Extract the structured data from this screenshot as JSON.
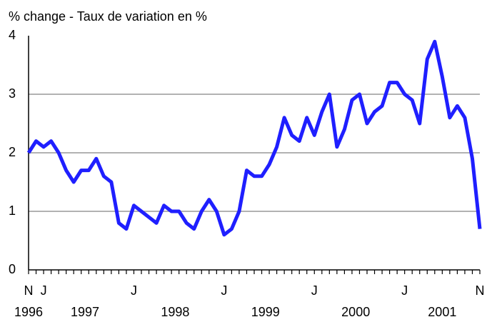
{
  "chart_data": {
    "type": "line",
    "title": "% change - Taux de variation en %",
    "categories": [
      "N",
      null,
      "J",
      null,
      null,
      null,
      null,
      null,
      null,
      null,
      null,
      null,
      null,
      null,
      "J",
      null,
      null,
      null,
      null,
      null,
      null,
      null,
      null,
      null,
      null,
      null,
      "J",
      null,
      null,
      null,
      null,
      null,
      null,
      null,
      null,
      null,
      null,
      null,
      "J",
      null,
      null,
      null,
      null,
      null,
      null,
      null,
      null,
      null,
      null,
      null,
      "J",
      null,
      null,
      null,
      null,
      null,
      null,
      null,
      null,
      null,
      "N"
    ],
    "years": [
      "1996",
      "1997",
      "1998",
      "1999",
      "2000",
      "2001"
    ],
    "series": [
      {
        "name": "% change",
        "color": "#1f1fff",
        "values": [
          2.0,
          2.2,
          2.1,
          2.2,
          2.0,
          1.7,
          1.5,
          1.7,
          1.7,
          1.9,
          1.6,
          1.5,
          0.8,
          0.7,
          1.1,
          1.0,
          0.9,
          0.8,
          1.1,
          1.0,
          1.0,
          0.8,
          0.7,
          1.0,
          1.2,
          1.0,
          0.6,
          0.7,
          1.0,
          1.7,
          1.6,
          1.6,
          1.8,
          2.1,
          2.6,
          2.3,
          2.2,
          2.6,
          2.3,
          2.7,
          3.0,
          2.1,
          2.4,
          2.9,
          3.0,
          2.5,
          2.7,
          2.8,
          3.2,
          3.2,
          3.0,
          2.9,
          2.5,
          3.6,
          3.9,
          3.3,
          2.6,
          2.8,
          2.6,
          1.9,
          0.7
        ]
      }
    ],
    "ylim": [
      0,
      4
    ],
    "yticks": [
      0,
      1,
      2,
      3,
      4
    ],
    "grid": true
  }
}
